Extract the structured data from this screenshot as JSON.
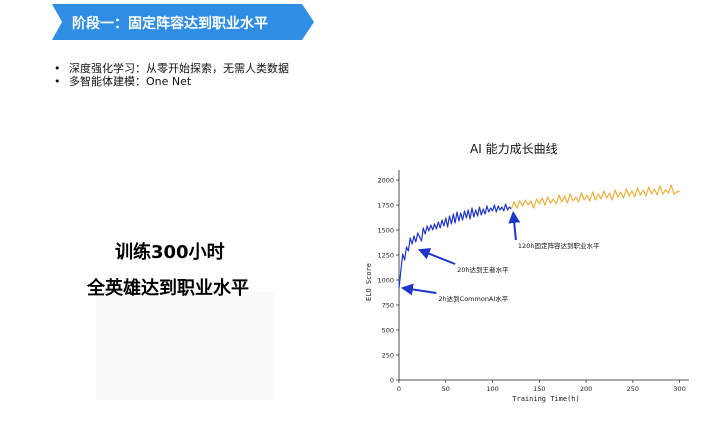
{
  "slide": {
    "banner_title": "阶段一：固定阵容达到职业水平",
    "bullets": [
      "深度强化学习：从零开始探索，无需人类数据",
      "多智能体建模：One Net"
    ],
    "headline_line1": "训练300小时",
    "headline_line2": "全英雄达到职业水平",
    "colors": {
      "banner": "#2f8de4",
      "series_blue": "#1f35c9",
      "series_orange": "#eab03c",
      "arrow": "#1f35c9"
    }
  },
  "chart_data": {
    "type": "line",
    "title": "AI 能力成长曲线",
    "xlabel": "Training Time(h)",
    "ylabel": "ELO Score",
    "xlim": [
      0,
      310
    ],
    "ylim": [
      0,
      2100
    ],
    "xticks": [
      0,
      50,
      100,
      150,
      200,
      250,
      300
    ],
    "yticks": [
      0,
      250,
      500,
      750,
      1000,
      1250,
      1500,
      1750,
      2000
    ],
    "grid": false,
    "series": [
      {
        "color": "#1f35c9",
        "x": [
          0,
          1,
          2,
          3,
          4,
          6,
          8,
          10,
          12,
          14,
          16,
          18,
          20,
          22,
          24,
          26,
          28,
          30,
          32,
          34,
          36,
          38,
          40,
          42,
          44,
          46,
          48,
          50,
          52,
          54,
          56,
          58,
          60,
          62,
          64,
          66,
          68,
          70,
          72,
          74,
          76,
          78,
          80,
          82,
          84,
          86,
          88,
          90,
          92,
          94,
          96,
          98,
          100,
          102,
          104,
          106,
          108,
          110,
          112,
          114,
          116,
          118,
          120
        ],
        "values": [
          920,
          1000,
          1100,
          1180,
          1260,
          1200,
          1330,
          1290,
          1420,
          1360,
          1440,
          1380,
          1470,
          1430,
          1390,
          1520,
          1460,
          1540,
          1490,
          1550,
          1500,
          1560,
          1510,
          1580,
          1520,
          1600,
          1540,
          1620,
          1530,
          1640,
          1560,
          1660,
          1570,
          1680,
          1590,
          1670,
          1600,
          1690,
          1620,
          1700,
          1610,
          1720,
          1630,
          1700,
          1640,
          1730,
          1650,
          1710,
          1660,
          1740,
          1680,
          1720,
          1690,
          1750,
          1680,
          1740,
          1700,
          1730,
          1690,
          1760,
          1700,
          1730,
          1710
        ]
      },
      {
        "color": "#eab03c",
        "x": [
          120,
          123,
          126,
          129,
          132,
          135,
          138,
          141,
          144,
          147,
          150,
          153,
          156,
          159,
          162,
          165,
          168,
          171,
          174,
          177,
          180,
          183,
          186,
          189,
          192,
          195,
          198,
          201,
          204,
          207,
          210,
          213,
          216,
          219,
          222,
          225,
          228,
          231,
          234,
          237,
          240,
          243,
          246,
          249,
          252,
          255,
          258,
          261,
          264,
          267,
          270,
          273,
          276,
          279,
          282,
          285,
          288,
          291,
          294,
          297,
          300
        ],
        "values": [
          1710,
          1780,
          1720,
          1790,
          1740,
          1800,
          1750,
          1790,
          1720,
          1810,
          1760,
          1820,
          1750,
          1830,
          1770,
          1810,
          1760,
          1850,
          1780,
          1840,
          1770,
          1860,
          1790,
          1830,
          1780,
          1870,
          1800,
          1850,
          1790,
          1880,
          1800,
          1860,
          1810,
          1890,
          1820,
          1870,
          1800,
          1900,
          1830,
          1880,
          1820,
          1910,
          1840,
          1890,
          1830,
          1920,
          1850,
          1900,
          1840,
          1930,
          1860,
          1910,
          1850,
          1940,
          1860,
          1900,
          1870,
          1950,
          1860,
          1880,
          1890
        ]
      }
    ],
    "annotations": [
      {
        "text": "120h固定阵容达到职业水平",
        "target_x": 120,
        "target_y": 1700,
        "text_x": 125,
        "text_y": 1380
      },
      {
        "text": "20h达到王者水平",
        "target_x": 20,
        "target_y": 1330,
        "text_x": 60,
        "text_y": 1140
      },
      {
        "text": "2h达到CommonAI水平",
        "target_x": 2,
        "target_y": 950,
        "text_x": 40,
        "text_y": 850
      }
    ]
  }
}
